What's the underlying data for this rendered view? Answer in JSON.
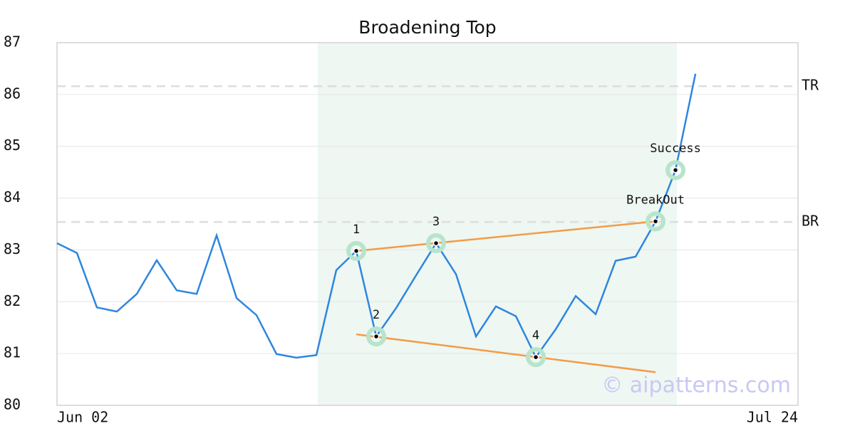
{
  "chart_data": {
    "type": "line",
    "title": "Broadening Top",
    "x": [
      0,
      1,
      2,
      3,
      4,
      5,
      6,
      7,
      8,
      9,
      10,
      11,
      12,
      13,
      14,
      15,
      16,
      17,
      18,
      19,
      20,
      21,
      22,
      23,
      24,
      25,
      26,
      27,
      28,
      29,
      30,
      31,
      32
    ],
    "values": [
      83.13,
      82.94,
      81.89,
      81.81,
      82.15,
      82.8,
      82.22,
      82.15,
      83.28,
      82.07,
      81.74,
      80.99,
      80.92,
      80.97,
      82.61,
      82.98,
      81.33,
      81.88,
      82.51,
      83.13,
      82.53,
      81.33,
      81.91,
      81.72,
      80.93,
      81.47,
      82.11,
      81.76,
      82.79,
      82.87,
      83.55,
      84.54,
      86.4
    ],
    "color": "#2e86de",
    "xlim": [
      0,
      37.14
    ],
    "xticks": [
      {
        "value": 0,
        "label": "Jun 02"
      },
      {
        "value": 37.14,
        "label": "Jul 24"
      }
    ],
    "ylim": [
      80,
      87
    ],
    "yticks": [
      80,
      81,
      82,
      83,
      84,
      85,
      86,
      87
    ],
    "grid": true,
    "highlight_range": [
      13.07,
      31.07
    ],
    "levels": [
      {
        "label": "TR",
        "value": 86.16
      },
      {
        "label": "BR",
        "value": 83.54
      }
    ],
    "trendlines": {
      "color": "#f39c45",
      "lines": [
        {
          "x": [
            15,
            30
          ],
          "y": [
            82.98,
            83.55
          ]
        },
        {
          "x": [
            15,
            30
          ],
          "y": [
            81.37,
            80.64
          ]
        }
      ]
    },
    "points": [
      {
        "label": "1",
        "x": 15,
        "y": 82.98
      },
      {
        "label": "2",
        "x": 16,
        "y": 81.33
      },
      {
        "label": "3",
        "x": 19,
        "y": 83.13
      },
      {
        "label": "4",
        "x": 24,
        "y": 80.93
      },
      {
        "label": "BreakOut",
        "x": 30,
        "y": 83.55
      },
      {
        "label": "Success",
        "x": 31,
        "y": 84.54
      }
    ],
    "watermark": "© aipatterns.com"
  }
}
